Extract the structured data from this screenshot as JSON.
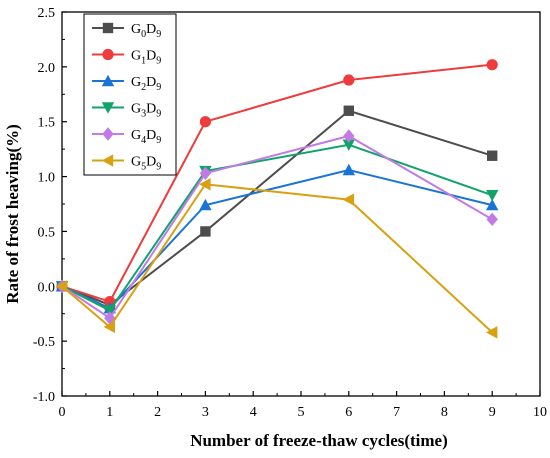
{
  "chart_data": {
    "type": "line",
    "title": "",
    "xlabel": "Number of freeze-thaw cycles(time)",
    "ylabel": "Rate of frost heaving(%)",
    "xlim": [
      0,
      10
    ],
    "ylim": [
      -1.0,
      2.5
    ],
    "x_ticks": [
      "0",
      "1",
      "2",
      "3",
      "4",
      "5",
      "6",
      "7",
      "8",
      "9",
      "10"
    ],
    "y_ticks": [
      "-1.0",
      "-0.5",
      "0.0",
      "0.5",
      "1.0",
      "1.5",
      "2.0",
      "2.5"
    ],
    "grid": false,
    "legend_position": "top-left",
    "x": [
      0,
      1,
      3,
      6,
      9
    ],
    "series": [
      {
        "name": "G0D9",
        "name_parts": [
          "G",
          "0",
          "D",
          "9"
        ],
        "color": "#4d4d4d",
        "marker": "square",
        "values": [
          0.0,
          -0.17,
          0.5,
          1.6,
          1.19
        ]
      },
      {
        "name": "G1D9",
        "name_parts": [
          "G",
          "1",
          "D",
          "9"
        ],
        "color": "#ee3b3b",
        "marker": "circle",
        "values": [
          0.0,
          -0.14,
          1.5,
          1.88,
          2.02
        ]
      },
      {
        "name": "G2D9",
        "name_parts": [
          "G",
          "2",
          "D",
          "9"
        ],
        "color": "#1a74d6",
        "marker": "triangle-up",
        "values": [
          0.0,
          -0.2,
          0.74,
          1.06,
          0.74
        ]
      },
      {
        "name": "G3D9",
        "name_parts": [
          "G",
          "3",
          "D",
          "9"
        ],
        "color": "#12a36b",
        "marker": "triangle-down",
        "values": [
          0.0,
          -0.22,
          1.05,
          1.29,
          0.83
        ]
      },
      {
        "name": "G4D9",
        "name_parts": [
          "G",
          "4",
          "D",
          "9"
        ],
        "color": "#c27be6",
        "marker": "diamond",
        "values": [
          0.0,
          -0.29,
          1.03,
          1.37,
          0.61
        ]
      },
      {
        "name": "G5D9",
        "name_parts": [
          "G",
          "5",
          "D",
          "9"
        ],
        "color": "#d9a012",
        "marker": "triangle-left",
        "values": [
          0.0,
          -0.37,
          0.93,
          0.79,
          -0.42
        ]
      }
    ]
  }
}
